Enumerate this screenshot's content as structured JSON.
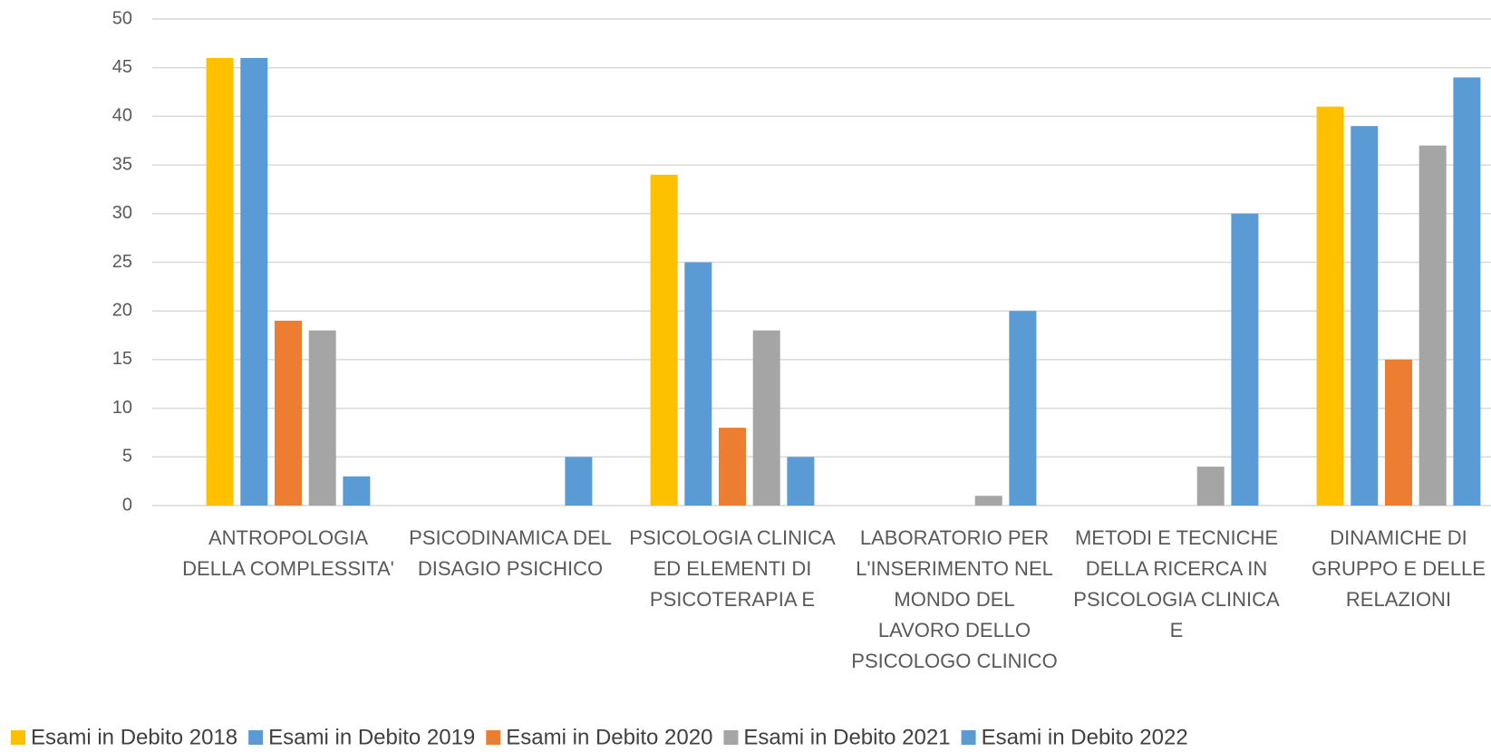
{
  "chart_data": {
    "type": "bar",
    "categories": [
      [
        "ANTROPOLOGIA",
        "DELLA COMPLESSITA'"
      ],
      [
        "PSICODINAMICA DEL",
        "DISAGIO PSICHICO"
      ],
      [
        "PSICOLOGIA CLINICA",
        "ED ELEMENTI DI",
        "PSICOTERAPIA E"
      ],
      [
        "LABORATORIO PER",
        "L'INSERIMENTO NEL",
        "MONDO DEL",
        "LAVORO DELLO",
        "PSICOLOGO CLINICO"
      ],
      [
        "METODI E TECNICHE",
        "DELLA RICERCA IN",
        "PSICOLOGIA CLINICA",
        "E"
      ],
      [
        "DINAMICHE DI",
        "GRUPPO E DELLE",
        "RELAZIONI"
      ]
    ],
    "series": [
      {
        "name": "Esami in Debito 2018",
        "color": "#ffc000",
        "values": [
          46,
          null,
          34,
          null,
          null,
          41
        ]
      },
      {
        "name": "Esami in Debito 2019",
        "color": "#5b9bd5",
        "values": [
          46,
          null,
          25,
          null,
          null,
          39
        ]
      },
      {
        "name": "Esami in Debito 2020",
        "color": "#ed7d31",
        "values": [
          19,
          null,
          8,
          null,
          null,
          15
        ]
      },
      {
        "name": "Esami in Debito 2021",
        "color": "#a5a5a5",
        "values": [
          18,
          null,
          18,
          1,
          4,
          37
        ]
      },
      {
        "name": "Esami in Debito 2022",
        "color": "#5b9bd5",
        "values": [
          3,
          5,
          5,
          20,
          30,
          44
        ]
      }
    ],
    "ylim": [
      0,
      50
    ],
    "yticks": [
      0,
      5,
      10,
      15,
      20,
      25,
      30,
      35,
      40,
      45,
      50
    ],
    "grid": true,
    "legend": "bottom"
  }
}
